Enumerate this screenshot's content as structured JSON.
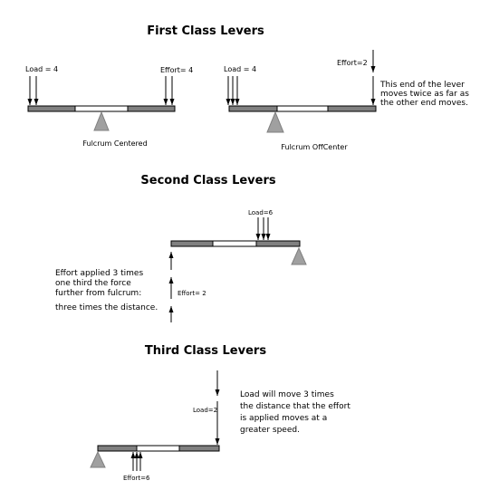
{
  "first": {
    "title": "First Class Levers",
    "left": {
      "load": "Load = 4",
      "effort": "Effort= 4",
      "caption": "Fulcrum Centered"
    },
    "right": {
      "load": "Load = 4",
      "effort": "Effort=2",
      "caption": "Fulcrum OffCenter",
      "note": [
        "This end of the lever",
        "moves twice as far as",
        "the other end moves."
      ]
    }
  },
  "second": {
    "title": "Second Class Levers",
    "load": "Load=6",
    "effort": "Effort= 2",
    "note": [
      "Effort applied 3 times",
      "one third the force",
      "further from fulcrum:",
      "three times the distance."
    ]
  },
  "third": {
    "title": "Third Class Levers",
    "load": "Load=2",
    "effort": "Effort=6",
    "note": [
      "Load will move 3 times",
      "the distance that the effort",
      "is applied  moves at a",
      "greater speed."
    ]
  }
}
